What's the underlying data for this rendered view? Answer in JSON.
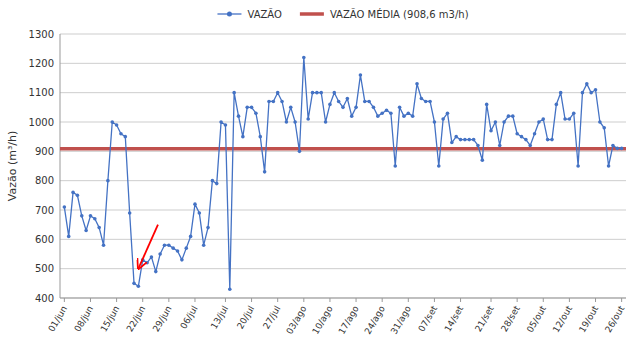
{
  "chart_data": {
    "type": "line",
    "y_label": "Vazão (m³/h)",
    "categories": [
      "01/jun",
      null,
      null,
      null,
      null,
      null,
      "08/jun",
      null,
      null,
      null,
      null,
      null,
      "15/jun",
      null,
      null,
      null,
      null,
      null,
      "22/jun",
      null,
      null,
      null,
      null,
      null,
      "29/jun",
      null,
      null,
      null,
      null,
      null,
      "06/jul",
      null,
      null,
      null,
      null,
      null,
      null,
      "13/jul",
      null,
      null,
      null,
      null,
      null,
      "20/jul",
      null,
      null,
      null,
      null,
      null,
      "27/jul",
      null,
      null,
      null,
      null,
      null,
      "03/ago",
      null,
      null,
      null,
      null,
      null,
      "10/ago",
      null,
      null,
      null,
      null,
      null,
      "17/ago",
      null,
      null,
      null,
      null,
      null,
      "24/ago",
      null,
      null,
      null,
      null,
      null,
      "31/ago",
      null,
      null,
      null,
      null,
      null,
      "07/set",
      null,
      null,
      null,
      null,
      null,
      "14/set",
      null,
      null,
      null,
      null,
      null,
      null,
      "21/set",
      null,
      null,
      null,
      null,
      null,
      "28/set",
      null,
      null,
      null,
      null,
      null,
      "05/out",
      null,
      null,
      null,
      null,
      null,
      "12/out",
      null,
      null,
      null,
      null,
      null,
      "19/out",
      null,
      null,
      null,
      null,
      null,
      "26/out"
    ],
    "series": [
      {
        "name": "VAZÃO",
        "color": "#4472C4",
        "marker": "circle",
        "line_style": "solid",
        "values": [
          710,
          610,
          760,
          750,
          680,
          630,
          680,
          670,
          640,
          580,
          800,
          1000,
          990,
          960,
          950,
          690,
          450,
          440,
          530,
          520,
          540,
          490,
          550,
          580,
          580,
          570,
          560,
          530,
          570,
          610,
          720,
          690,
          580,
          640,
          800,
          790,
          1000,
          990,
          430,
          1100,
          1020,
          950,
          1050,
          1050,
          1030,
          950,
          830,
          1070,
          1070,
          1100,
          1070,
          1000,
          1050,
          1000,
          900,
          1220,
          1010,
          1100,
          1100,
          1100,
          1000,
          1060,
          1100,
          1070,
          1050,
          1080,
          1020,
          1050,
          1160,
          1070,
          1070,
          1050,
          1020,
          1030,
          1040,
          1030,
          850,
          1050,
          1020,
          1030,
          1020,
          1130,
          1080,
          1070,
          1070,
          1000,
          850,
          1010,
          1030,
          930,
          950,
          940,
          940,
          940,
          940,
          920,
          870,
          1060,
          970,
          1000,
          920,
          1000,
          1020,
          1020,
          960,
          950,
          940,
          920,
          960,
          1000,
          1010,
          940,
          940,
          1060,
          1100,
          1010,
          1010,
          1030,
          850,
          1100,
          1130,
          1100,
          1110,
          1000,
          980,
          850,
          920,
          910,
          910
        ]
      }
    ],
    "reference_lines": [
      {
        "name": "VAZÃO MÉDIA (908,6 m3/h)",
        "color": "#C0504D",
        "value": 908.6
      }
    ],
    "annotations": [
      {
        "x": 17.0,
        "y": 500,
        "from_x": 21.5,
        "from_y": 650,
        "color": "red"
      }
    ],
    "ylim": [
      400,
      1300
    ],
    "yticks": [
      400,
      500,
      600,
      700,
      800,
      900,
      1000,
      1100,
      1200,
      1300
    ],
    "grid": "y",
    "legend": "top"
  }
}
